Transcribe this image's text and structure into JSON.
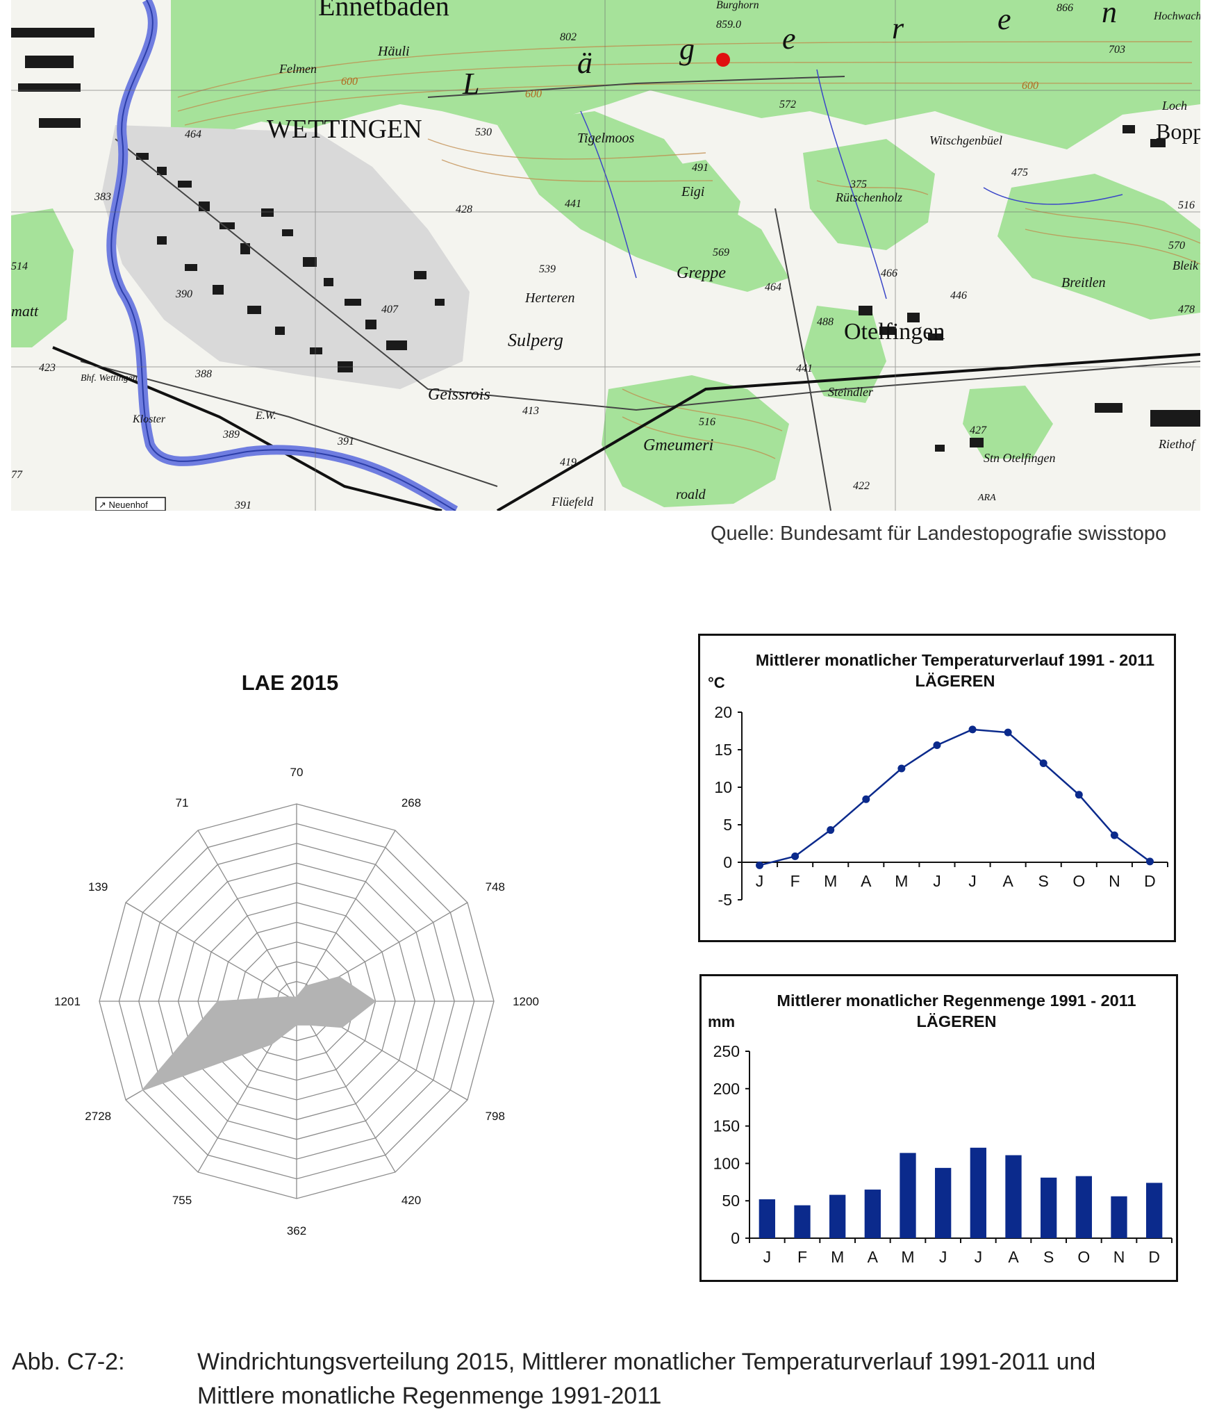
{
  "map": {
    "labels": {
      "wettingen": "WETTINGEN",
      "ennetbaden": "Ennetbaden",
      "otelfingen": "Otelfingen",
      "sulperg": "Sulperg",
      "geissrois": "Geissrois",
      "herteren": "Herteren",
      "greppe": "Greppe",
      "gmeumeri": "Gmeumeri",
      "tigelmoos": "Tigelmoos",
      "eigi": "Eigi",
      "ruetschenholz": "Rütschenholz",
      "witschgenbuel": "Witschgenbüel",
      "breitlen": "Breitlen",
      "steindler": "Steindler",
      "st_otelfingen": "Stn Otelfingen",
      "flueefeld": "Flüefeld",
      "felmen": "Felmen",
      "haeuli": "Häuli",
      "burghorn": "Burghorn",
      "hochwacht": "Hochwacht",
      "loch": "Loch",
      "bopp": "Bopp",
      "bleik": "Bleik",
      "riethof": "Riethof",
      "ara": "ARA",
      "neuenhof": "↗ Neuenhof",
      "ew": "E.W.",
      "klaster": "Kloster",
      "bhf_wettingen": "Bhf. Wettingen",
      "matt": "matt",
      "roald": "roald",
      "laegern_letters": [
        "L",
        "ä",
        "g",
        "e",
        "r",
        "e",
        "n"
      ]
    },
    "heights": [
      "802",
      "859.0",
      "866",
      "703",
      "530",
      "572",
      "491",
      "441",
      "375",
      "475",
      "516",
      "570",
      "478",
      "539",
      "569",
      "464",
      "466",
      "446",
      "488",
      "441",
      "407",
      "390",
      "388",
      "413",
      "419",
      "516",
      "427",
      "422",
      "383",
      "423",
      "600",
      "600",
      "600",
      "464",
      "428",
      "391",
      "391",
      "77",
      "514",
      "389"
    ]
  },
  "source_text": "Quelle: Bundesamt für Landestopografie swisstopo",
  "chart_data": [
    {
      "type": "radar",
      "title": "LAE 2015",
      "categories": [
        "70",
        "268",
        "748",
        "1200",
        "798",
        "420",
        "362",
        "755",
        "2728",
        "1201",
        "139",
        "71"
      ],
      "values": [
        70,
        268,
        748,
        1200,
        798,
        420,
        362,
        755,
        2728,
        1201,
        139,
        71
      ],
      "max": 3000,
      "rings": 10,
      "fill_color": "#b3b3b3",
      "grid_color": "#8c8c8c"
    },
    {
      "type": "line",
      "title": "Mittlerer monatlicher Temperaturverlauf 1991 - 2011",
      "subtitle": "LÄGEREN",
      "ylabel": "°C",
      "categories": [
        "J",
        "F",
        "M",
        "A",
        "M",
        "J",
        "J",
        "A",
        "S",
        "O",
        "N",
        "D"
      ],
      "values": [
        -0.4,
        0.8,
        4.3,
        8.4,
        12.5,
        15.6,
        17.7,
        17.3,
        13.2,
        9.0,
        3.6,
        0.1
      ],
      "ylim": [
        -5,
        20
      ],
      "yticks": [
        "20",
        "15",
        "10",
        "5",
        "0",
        "-5"
      ],
      "color": "#0b2a8c"
    },
    {
      "type": "bar",
      "title": "Mittlerer monatlicher Regenmenge 1991 - 2011",
      "subtitle": "LÄGEREN",
      "ylabel": "mm",
      "categories": [
        "J",
        "F",
        "M",
        "A",
        "M",
        "J",
        "J",
        "A",
        "S",
        "O",
        "N",
        "D"
      ],
      "values": [
        52,
        44,
        58,
        65,
        114,
        94,
        121,
        111,
        81,
        83,
        56,
        74
      ],
      "ylim": [
        0,
        250
      ],
      "yticks": [
        "250",
        "200",
        "150",
        "100",
        "50",
        "0"
      ],
      "color": "#0b2a8c"
    }
  ],
  "caption": {
    "label": "Abb. C7-2:",
    "line1": "Windrichtungsverteilung 2015, Mittlerer monatlicher Temperaturverlauf 1991-2011 und",
    "line2": "Mittlere monatliche Regenmenge 1991-2011"
  }
}
